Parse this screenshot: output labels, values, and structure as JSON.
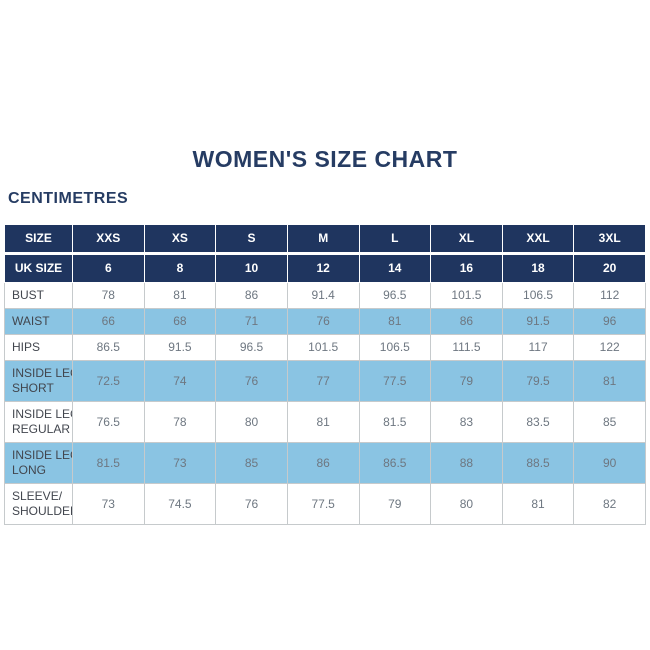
{
  "page": {
    "title": "WOMEN'S SIZE CHART",
    "unit_label": "CENTIMETRES"
  },
  "colors": {
    "navy": "#1f355f",
    "light_blue": "#8ac4e3",
    "border": "#c6cacc",
    "title_text": "#263c63",
    "value_text": "#6e7781",
    "label_text": "#42464e",
    "white": "#ffffff"
  },
  "chart_data": {
    "type": "table",
    "title": "WOMEN'S SIZE CHART",
    "unit": "CENTIMETRES",
    "header_rows": [
      {
        "label": "SIZE",
        "values": [
          "XXS",
          "XS",
          "S",
          "M",
          "L",
          "XL",
          "XXL",
          "3XL"
        ]
      },
      {
        "label": "UK SIZE",
        "values": [
          "6",
          "8",
          "10",
          "12",
          "14",
          "16",
          "18",
          "20"
        ]
      }
    ],
    "rows": [
      {
        "label": "BUST",
        "label_lines": [
          "BUST"
        ],
        "shaded": false,
        "values": [
          "78",
          "81",
          "86",
          "91.4",
          "96.5",
          "101.5",
          "106.5",
          "112"
        ]
      },
      {
        "label": "WAIST",
        "label_lines": [
          "WAIST"
        ],
        "shaded": true,
        "values": [
          "66",
          "68",
          "71",
          "76",
          "81",
          "86",
          "91.5",
          "96"
        ]
      },
      {
        "label": "HIPS",
        "label_lines": [
          "HIPS"
        ],
        "shaded": false,
        "values": [
          "86.5",
          "91.5",
          "96.5",
          "101.5",
          "106.5",
          "111.5",
          "117",
          "122"
        ]
      },
      {
        "label": "INSIDE LEG SHORT",
        "label_lines": [
          "INSIDE LEG",
          "SHORT"
        ],
        "shaded": true,
        "values": [
          "72.5",
          "74",
          "76",
          "77",
          "77.5",
          "79",
          "79.5",
          "81"
        ]
      },
      {
        "label": "INSIDE LEG REGULAR",
        "label_lines": [
          "INSIDE LEG",
          "REGULAR"
        ],
        "shaded": false,
        "values": [
          "76.5",
          "78",
          "80",
          "81",
          "81.5",
          "83",
          "83.5",
          "85"
        ]
      },
      {
        "label": "INSIDE LEG LONG",
        "label_lines": [
          "INSIDE LEG",
          "LONG"
        ],
        "shaded": true,
        "values": [
          "81.5",
          "73",
          "85",
          "86",
          "86.5",
          "88",
          "88.5",
          "90"
        ]
      },
      {
        "label": "SLEEVE/ SHOULDER",
        "label_lines": [
          "SLEEVE/",
          "SHOULDER"
        ],
        "shaded": false,
        "values": [
          "73",
          "74.5",
          "76",
          "77.5",
          "79",
          "80",
          "81",
          "82"
        ]
      }
    ]
  }
}
